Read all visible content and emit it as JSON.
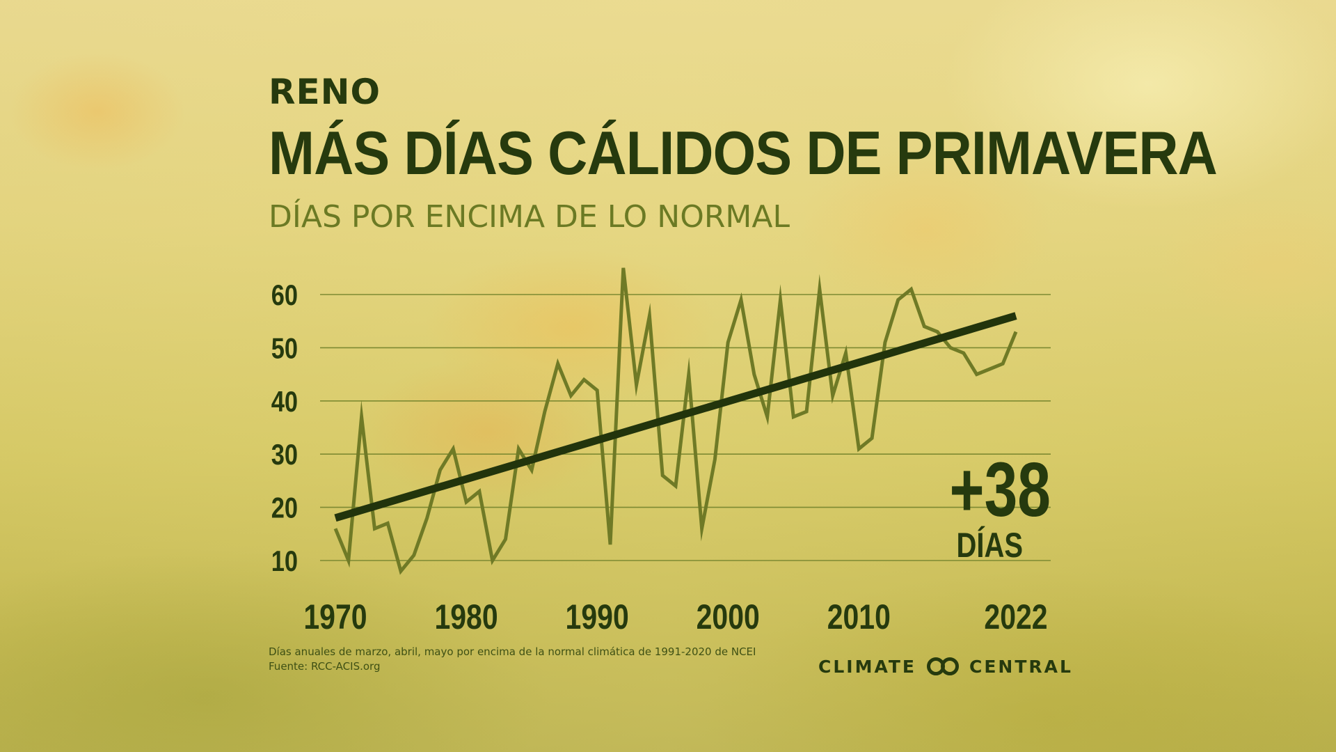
{
  "header": {
    "kicker": "RENO",
    "title": "MÁS DÍAS CÁLIDOS DE PRIMAVERA",
    "subtitle": "DÍAS POR ENCIMA DE LO NORMAL"
  },
  "callout": {
    "value": "+38",
    "unit": "DÍAS"
  },
  "footnote": {
    "line1": "Días anuales de marzo, abril, mayo por encima de la normal climática de 1991-2020 de NCEI",
    "line2": "Fuente: RCC-ACIS.org"
  },
  "brand": {
    "left": "CLIMATE",
    "right": "CENTRAL",
    "logo_icon": "linked-rings-icon"
  },
  "colors": {
    "text_dark": "#263a0e",
    "subtitle": "#6b7a24",
    "data_line": "#6f7a26",
    "trend_line": "#22340c",
    "gridline": "#7d8a32"
  },
  "chart_data": {
    "type": "line",
    "x_tick_labels": [
      "1970",
      "1980",
      "1990",
      "2000",
      "2010",
      "2022"
    ],
    "x_ticks": [
      1970,
      1980,
      1990,
      2000,
      2010,
      2022
    ],
    "y_ticks": [
      10,
      20,
      30,
      40,
      50,
      60
    ],
    "xlim": [
      1970,
      2022
    ],
    "ylim": [
      10,
      60
    ],
    "grid": true,
    "series": [
      {
        "x": [
          1970,
          1971,
          1972,
          1973,
          1974,
          1975,
          1976,
          1977,
          1978,
          1979,
          1980,
          1981,
          1982,
          1983,
          1984,
          1985,
          1986,
          1987,
          1988,
          1989,
          1990,
          1991,
          1992,
          1993,
          1994,
          1995,
          1996,
          1997,
          1998,
          1999,
          2000,
          2001,
          2002,
          2003,
          2004,
          2005,
          2006,
          2007,
          2008,
          2009,
          2010,
          2011,
          2012,
          2013,
          2014,
          2015,
          2016,
          2017,
          2018,
          2019,
          2020,
          2021,
          2022
        ],
        "values": [
          16,
          10,
          37,
          16,
          17,
          8,
          11,
          18,
          27,
          31,
          21,
          23,
          10,
          14,
          31,
          27,
          38,
          47,
          41,
          44,
          42,
          13,
          65,
          43,
          56,
          26,
          24,
          45,
          16,
          29,
          51,
          59,
          45,
          37,
          59,
          37,
          38,
          61,
          41,
          49,
          31,
          33,
          51,
          59,
          61,
          54,
          53,
          50,
          49,
          45,
          46,
          47,
          53
        ]
      },
      {
        "trend": true,
        "x": [
          1970,
          2022
        ],
        "values": [
          18,
          56
        ]
      }
    ]
  }
}
